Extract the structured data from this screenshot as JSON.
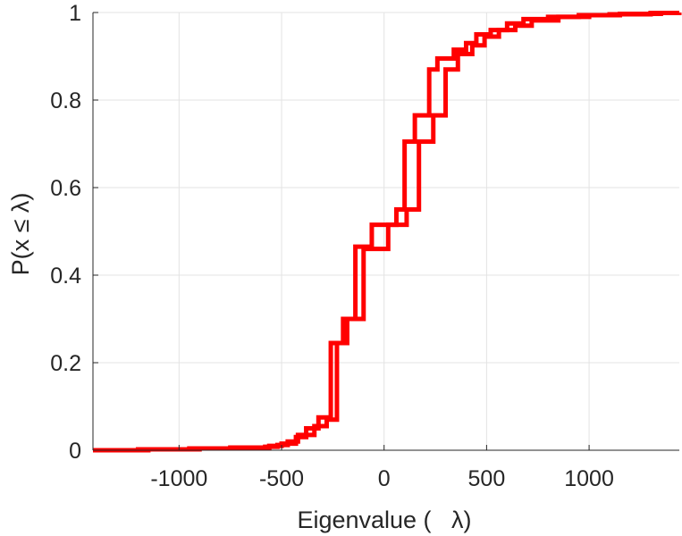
{
  "chart_data": {
    "type": "line",
    "step": true,
    "title": "",
    "xlabel": "Eigenvalue (   λ)",
    "ylabel": "P(x ≤ λ)",
    "xlim": [
      -1420,
      1440
    ],
    "ylim": [
      0,
      1
    ],
    "grid": true,
    "xticks": [
      -1000,
      -500,
      0,
      500,
      1000
    ],
    "xtick_labels": [
      "-1000",
      "-500",
      "0",
      "500",
      "1000"
    ],
    "yticks": [
      0,
      0.2,
      0.4,
      0.6,
      0.8,
      1
    ],
    "ytick_labels": [
      "0",
      "0.2",
      "0.4",
      "0.6",
      "0.8",
      "1"
    ],
    "colors": {
      "series": "#ff0000",
      "grid": "#e3e3e3",
      "axis": "#262626"
    },
    "series": [
      {
        "x": [
          -1420,
          -1150,
          -900,
          -700,
          -560,
          -500,
          -430,
          -380,
          -320,
          -260,
          -200,
          -140,
          -60,
          60,
          100,
          150,
          220,
          260,
          340,
          400,
          450,
          520,
          600,
          680,
          800,
          950,
          1100,
          1300,
          1440
        ],
        "y": [
          0,
          0.002,
          0.004,
          0.006,
          0.01,
          0.015,
          0.03,
          0.05,
          0.075,
          0.245,
          0.3,
          0.465,
          0.515,
          0.55,
          0.705,
          0.765,
          0.87,
          0.895,
          0.915,
          0.93,
          0.95,
          0.96,
          0.975,
          0.985,
          0.99,
          0.994,
          0.996,
          0.999,
          1
        ]
      },
      {
        "x": [
          -1420,
          -1200,
          -950,
          -750,
          -580,
          -520,
          -470,
          -420,
          -340,
          -280,
          -230,
          -180,
          -100,
          20,
          110,
          170,
          240,
          300,
          360,
          430,
          490,
          560,
          640,
          720,
          850,
          1000,
          1150,
          1350,
          1440
        ],
        "y": [
          0,
          0.002,
          0.004,
          0.006,
          0.008,
          0.012,
          0.02,
          0.035,
          0.055,
          0.07,
          0.245,
          0.3,
          0.46,
          0.515,
          0.55,
          0.705,
          0.765,
          0.87,
          0.905,
          0.925,
          0.945,
          0.96,
          0.97,
          0.982,
          0.99,
          0.994,
          0.997,
          0.999,
          1
        ]
      }
    ]
  }
}
